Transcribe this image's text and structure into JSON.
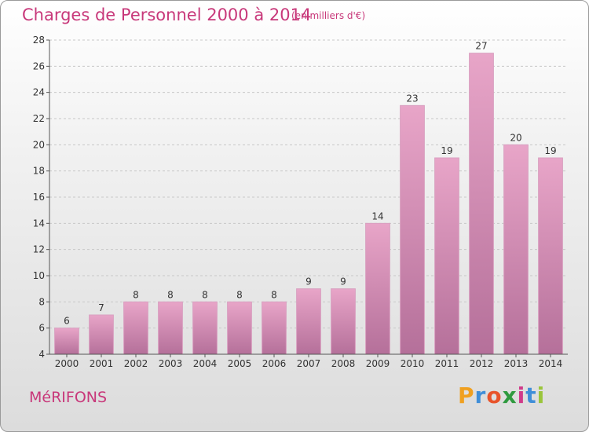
{
  "header": {
    "title": "Charges de Personnel 2000 à 2014",
    "unit_note": "(en milliers d'€)"
  },
  "footer": {
    "town": "MéRIFONS",
    "logo_letters": [
      "P",
      "r",
      "o",
      "x",
      "i",
      "t",
      "i"
    ],
    "logo_colors": [
      "#f0a020",
      "#3f8ed8",
      "#e8532a",
      "#2f9a3f",
      "#d03a8a",
      "#3f8ed8",
      "#9ac53b"
    ]
  },
  "chart_data": {
    "type": "bar",
    "title": "Charges de Personnel 2000 à 2014",
    "categories": [
      "2000",
      "2001",
      "2002",
      "2003",
      "2004",
      "2005",
      "2006",
      "2007",
      "2008",
      "2009",
      "2010",
      "2011",
      "2012",
      "2013",
      "2014"
    ],
    "values": [
      6,
      7,
      8,
      8,
      8,
      8,
      8,
      9,
      9,
      14,
      23,
      19,
      27,
      20,
      19
    ],
    "data_labels": [
      "6",
      "7",
      "8",
      "8",
      "8",
      "8",
      "8",
      "9",
      "9",
      "14",
      "23",
      "19",
      "27",
      "20",
      "19"
    ],
    "ylim": [
      4,
      28
    ],
    "yticks": [
      "4",
      "6",
      "8",
      "10",
      "12",
      "14",
      "16",
      "18",
      "20",
      "22",
      "24",
      "26",
      "28"
    ],
    "grid": true,
    "bar_color": "#e8a5c8",
    "bar_color_dark": "#b5709a"
  }
}
